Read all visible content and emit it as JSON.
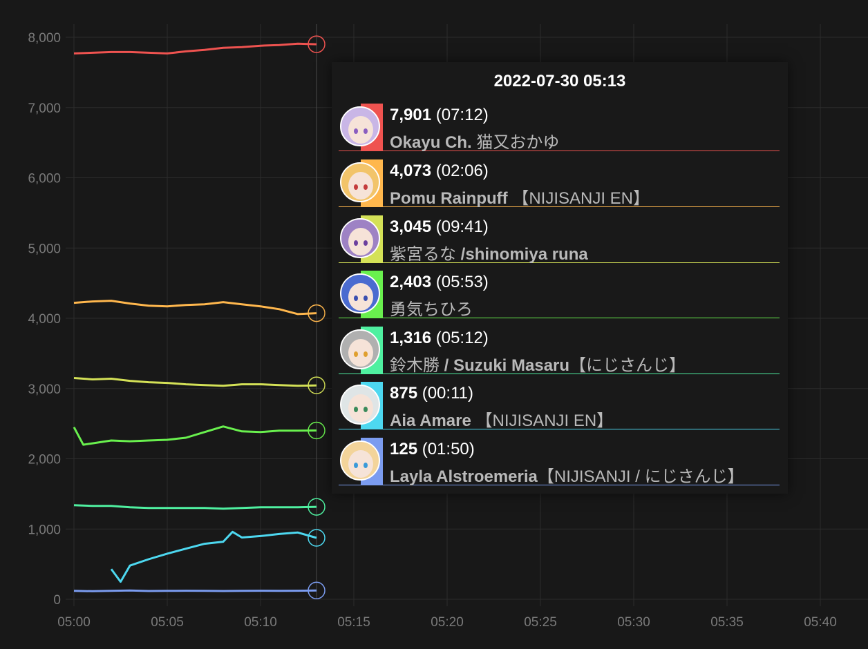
{
  "chart_data": {
    "type": "line",
    "x_ticks": [
      "05:00",
      "05:05",
      "05:10",
      "05:15",
      "05:20",
      "05:25",
      "05:30",
      "05:35",
      "05:40"
    ],
    "y_ticks": [
      "0",
      "1,000",
      "2,000",
      "3,000",
      "4,000",
      "5,000",
      "6,000",
      "7,000",
      "8,000"
    ],
    "ylim": [
      0,
      8000
    ],
    "xlim_minutes_after_0500": [
      0,
      41
    ],
    "grid": true,
    "hover_x": "05:13",
    "series": [
      {
        "color": "#ef5350",
        "x": [
          "05:00",
          "05:01",
          "05:02",
          "05:03",
          "05:04",
          "05:05",
          "05:06",
          "05:07",
          "05:08",
          "05:09",
          "05:10",
          "05:11",
          "05:12",
          "05:13"
        ],
        "values": [
          7770,
          7780,
          7790,
          7790,
          7780,
          7770,
          7800,
          7820,
          7850,
          7860,
          7880,
          7890,
          7910,
          7901
        ]
      },
      {
        "color": "#ffb74d",
        "x": [
          "05:00",
          "05:01",
          "05:02",
          "05:03",
          "05:04",
          "05:05",
          "05:06",
          "05:07",
          "05:08",
          "05:09",
          "05:10",
          "05:11",
          "05:12",
          "05:13"
        ],
        "values": [
          4220,
          4240,
          4250,
          4210,
          4180,
          4170,
          4190,
          4200,
          4230,
          4200,
          4170,
          4130,
          4060,
          4073
        ]
      },
      {
        "color": "#d4e157",
        "x": [
          "05:00",
          "05:01",
          "05:02",
          "05:03",
          "05:04",
          "05:05",
          "05:06",
          "05:07",
          "05:08",
          "05:09",
          "05:10",
          "05:11",
          "05:12",
          "05:13"
        ],
        "values": [
          3150,
          3130,
          3140,
          3110,
          3090,
          3080,
          3060,
          3050,
          3040,
          3060,
          3060,
          3050,
          3040,
          3045
        ]
      },
      {
        "color": "#69f04e",
        "x": [
          "05:00",
          "05:00.5",
          "05:01",
          "05:02",
          "05:03",
          "05:04",
          "05:05",
          "05:06",
          "05:07",
          "05:08",
          "05:09",
          "05:10",
          "05:11",
          "05:12",
          "05:13"
        ],
        "values": [
          2450,
          2200,
          2220,
          2260,
          2250,
          2260,
          2270,
          2300,
          2380,
          2460,
          2390,
          2380,
          2400,
          2400,
          2403
        ]
      },
      {
        "color": "#4ff0a0",
        "x": [
          "05:00",
          "05:01",
          "05:02",
          "05:03",
          "05:04",
          "05:05",
          "05:06",
          "05:07",
          "05:08",
          "05:09",
          "05:10",
          "05:11",
          "05:12",
          "05:13"
        ],
        "values": [
          1340,
          1330,
          1330,
          1310,
          1300,
          1300,
          1300,
          1300,
          1290,
          1300,
          1310,
          1310,
          1310,
          1316
        ]
      },
      {
        "color": "#4dd8f0",
        "x": [
          "05:02",
          "05:02.5",
          "05:03",
          "05:04",
          "05:05",
          "05:06",
          "05:07",
          "05:08",
          "05:08.5",
          "05:09",
          "05:10",
          "05:11",
          "05:12",
          "05:13"
        ],
        "values": [
          430,
          250,
          480,
          570,
          650,
          720,
          790,
          820,
          960,
          880,
          900,
          930,
          950,
          875
        ]
      },
      {
        "color": "#7b9cf0",
        "x": [
          "05:00",
          "05:01",
          "05:02",
          "05:03",
          "05:04",
          "05:05",
          "05:06",
          "05:07",
          "05:08",
          "05:09",
          "05:10",
          "05:11",
          "05:12",
          "05:13"
        ],
        "values": [
          120,
          115,
          120,
          125,
          118,
          120,
          122,
          120,
          118,
          120,
          122,
          120,
          122,
          125
        ]
      }
    ]
  },
  "tooltip": {
    "title": "2022-07-30 05:13",
    "entries": [
      {
        "value": "7,901",
        "duration": "(07:12)",
        "name_bold": "Okayu Ch.",
        "name_rest": " 猫又おかゆ",
        "color": "#ef5350",
        "hair": "#c9b6e6",
        "eyes": "#8a5ec0"
      },
      {
        "value": "4,073",
        "duration": "(02:06)",
        "name_bold": "Pomu Rainpuff",
        "name_rest": " 【NIJISANJI EN】",
        "color": "#ffb74d",
        "hair": "#f2c46a",
        "eyes": "#c43c3c"
      },
      {
        "value": "3,045",
        "duration": "(09:41)",
        "name_bold": "/shinomiya runa",
        "name_rest_pre": "紫宮るな ",
        "color": "#d4e157",
        "hair": "#9e82c4",
        "eyes": "#6b3f9e"
      },
      {
        "value": "2,403",
        "duration": "(05:53)",
        "name_bold": "",
        "name_rest": "勇気ちひろ",
        "color": "#69f04e",
        "hair": "#4a6bd0",
        "eyes": "#3a4fb0"
      },
      {
        "value": "1,316",
        "duration": "(05:12)",
        "name_bold": "/ Suzuki Masaru",
        "name_rest_pre": "鈴木勝 ",
        "name_rest": "【にじさんじ】",
        "color": "#4ff0a0",
        "hair": "#b0b0b0",
        "eyes": "#e0a030"
      },
      {
        "value": "875",
        "duration": "(00:11)",
        "name_bold": "Aia Amare",
        "name_rest": " 【NIJISANJI EN】",
        "color": "#4dd8f0",
        "hair": "#dfe5e6",
        "eyes": "#3a8a5a"
      },
      {
        "value": "125",
        "duration": "(01:50)",
        "name_bold": "Layla Alstroemeria",
        "name_rest": "【NIJISANJI / にじさんじ】",
        "color": "#7b9cf0",
        "hair": "#f3d49a",
        "eyes": "#3a9ad9"
      }
    ]
  }
}
